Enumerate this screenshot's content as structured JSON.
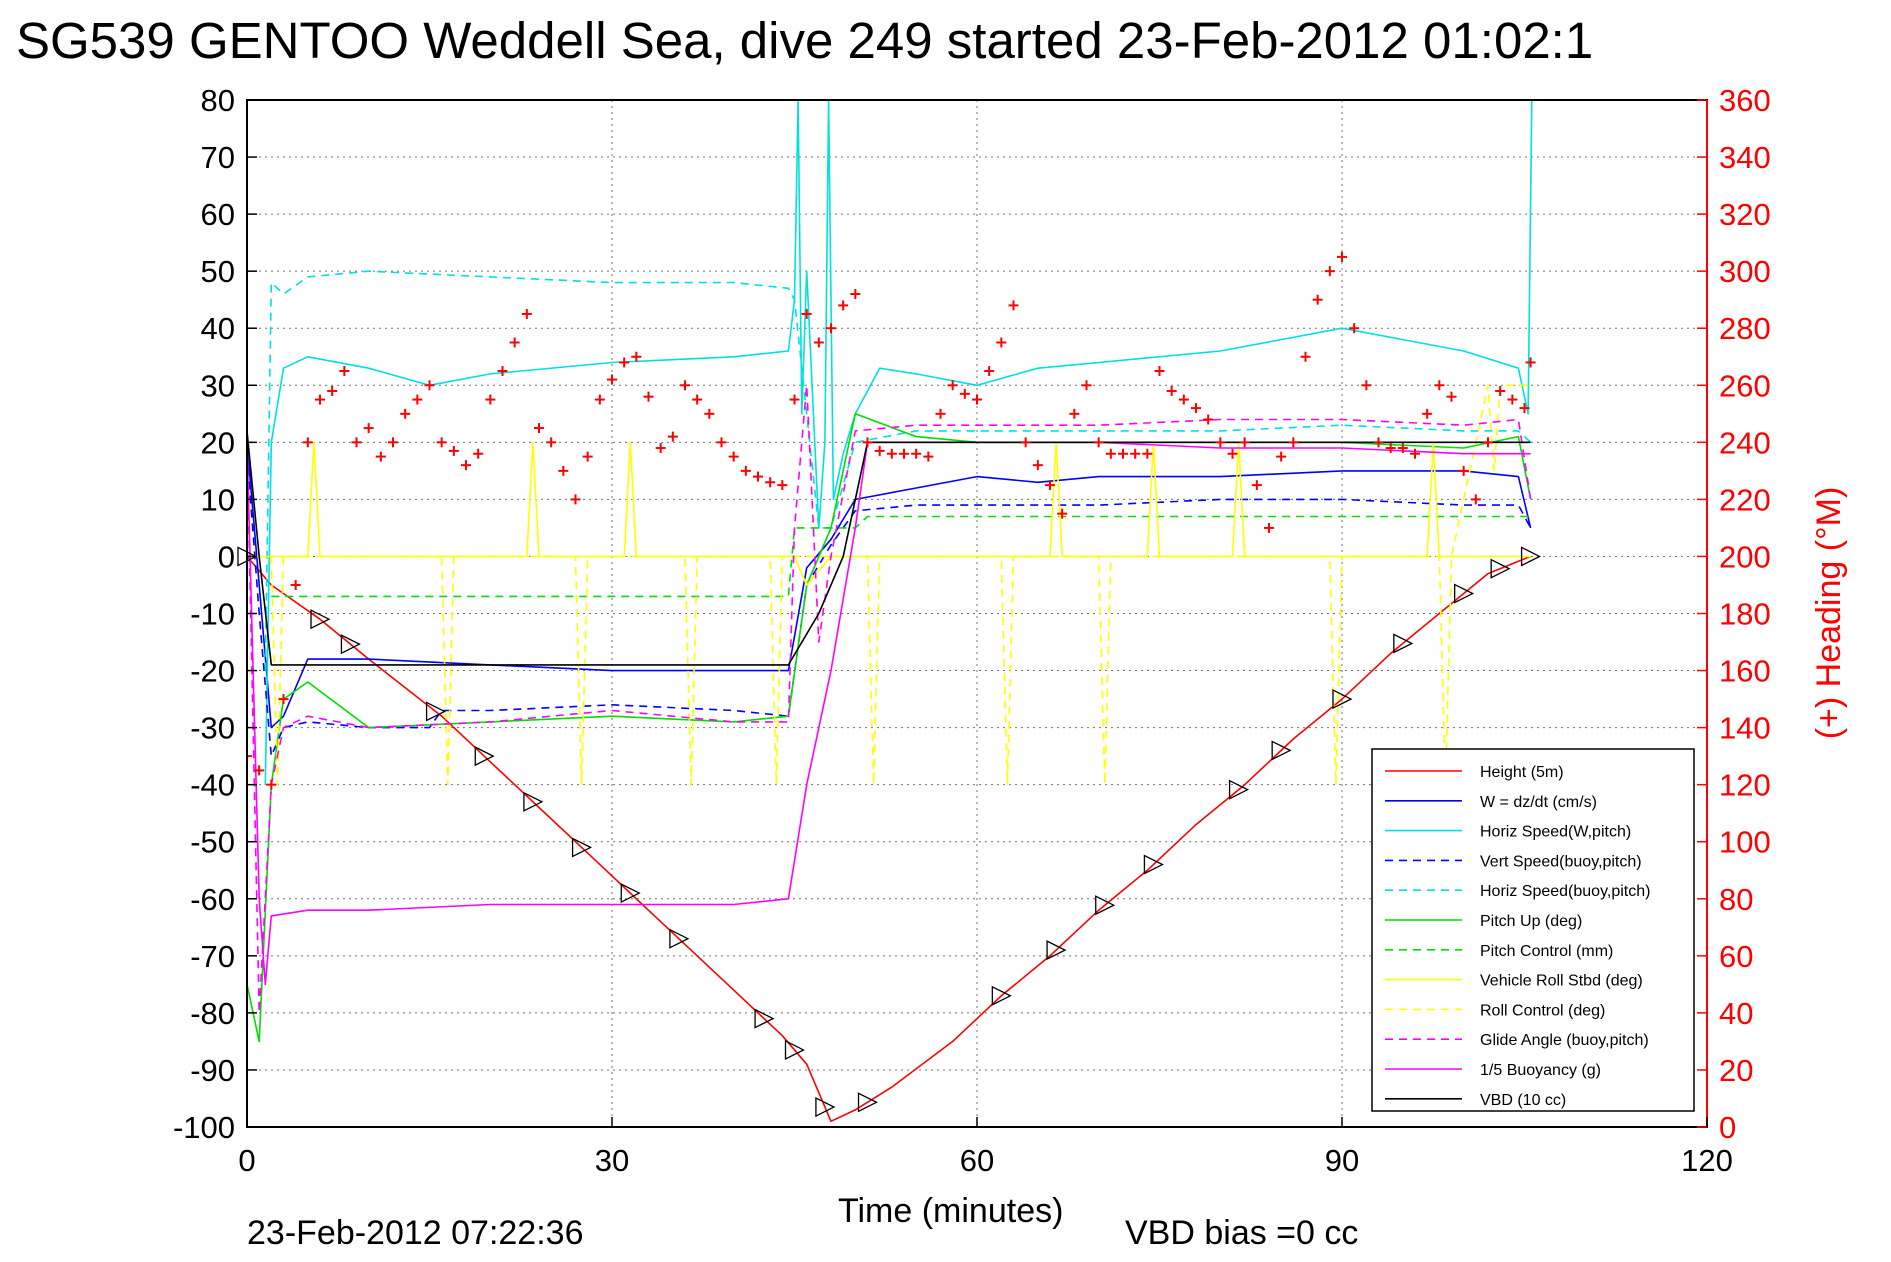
{
  "chart_data": {
    "type": "line",
    "title": "SG539 GENTOO Weddell Sea, dive 249 started 23-Feb-2012 01:02:1",
    "xlabel": "Time (minutes)",
    "ylabel": "",
    "y2label": "(+) Heading (°M)",
    "footer_left": "23-Feb-2012 07:22:36",
    "footer_right": "VBD bias =0 cc",
    "xlim": [
      0,
      120
    ],
    "ylim": [
      -100,
      80
    ],
    "y2lim": [
      0,
      360
    ],
    "x_ticks": [
      0,
      30,
      60,
      90,
      120
    ],
    "y_ticks": [
      80,
      70,
      60,
      50,
      40,
      30,
      20,
      10,
      0,
      -10,
      -20,
      -30,
      -40,
      -50,
      -60,
      -70,
      -80,
      -90,
      -100
    ],
    "y2_ticks": [
      360,
      340,
      320,
      300,
      280,
      260,
      240,
      220,
      200,
      180,
      160,
      140,
      120,
      100,
      80,
      60,
      40,
      20,
      0
    ],
    "grid": true,
    "legend_position": "bottom-right",
    "series": [
      {
        "name": "Height (5m)",
        "color": "#ff0000",
        "dash": "solid",
        "x": [
          0,
          2,
          6,
          10,
          16,
          20,
          24,
          28,
          32,
          36,
          40,
          44,
          46,
          48,
          50,
          53,
          58,
          62,
          66,
          70,
          74,
          78,
          82,
          86,
          90,
          94,
          98,
          102,
          105.5
        ],
        "y": [
          0,
          -5,
          -11,
          -18,
          -28,
          -36,
          -44,
          -52,
          -60,
          -68,
          -76,
          -84,
          -89,
          -99,
          -97,
          -93,
          -85,
          -77,
          -70,
          -62,
          -55,
          -47,
          -40,
          -32,
          -25,
          -17,
          -10,
          -3,
          0
        ]
      },
      {
        "name": "W = dz/dt (cm/s)",
        "color": "#0000ff",
        "dash": "solid",
        "x": [
          0,
          1,
          2,
          3,
          5,
          10,
          20,
          30,
          40,
          44.5,
          46,
          48,
          50,
          55,
          60,
          65,
          70,
          80,
          90,
          100,
          104.5,
          105.5
        ],
        "y": [
          20,
          -5,
          -30,
          -28,
          -18,
          -18,
          -19,
          -20,
          -20,
          -20,
          -2,
          3,
          10,
          12,
          14,
          13,
          14,
          14,
          15,
          15,
          14,
          5
        ]
      },
      {
        "name": "Horiz Speed(W,pitch)",
        "color": "#00e0e0",
        "dash": "solid",
        "x": [
          1.5,
          2,
          3,
          5,
          10,
          15,
          20,
          30,
          40,
          44.5,
          45,
          45.3,
          45.6,
          46,
          47,
          47.5,
          47.8,
          48.2,
          49,
          50,
          52,
          55,
          60,
          65,
          70,
          80,
          85,
          90,
          95,
          100,
          104.5,
          105.3,
          105.6
        ],
        "y": [
          -40,
          20,
          33,
          35,
          33,
          30,
          32,
          34,
          35,
          36,
          45,
          80,
          25,
          50,
          5,
          20,
          80,
          10,
          18,
          25,
          33,
          32,
          30,
          33,
          34,
          36,
          38,
          40,
          38,
          36,
          33,
          25,
          80
        ]
      },
      {
        "name": "Vert Speed(buoy,pitch)",
        "color": "#0000ff",
        "dash": "dash",
        "x": [
          0,
          1,
          2,
          3,
          5,
          10,
          15,
          16,
          20,
          30,
          40,
          44.5,
          46,
          48,
          50,
          55,
          60,
          70,
          80,
          90,
          100,
          104.5,
          105.5
        ],
        "y": [
          18,
          -10,
          -35,
          -30,
          -29,
          -30,
          -30,
          -27,
          -27,
          -26,
          -27,
          -28,
          -5,
          2,
          8,
          9,
          9,
          9,
          10,
          10,
          9,
          9,
          5
        ]
      },
      {
        "name": "Horiz Speed(buoy,pitch)",
        "color": "#00e0e0",
        "dash": "dash",
        "x": [
          1.5,
          2,
          3,
          5,
          10,
          20,
          30,
          40,
          44.5,
          45,
          46,
          47,
          48,
          50,
          55,
          60,
          70,
          80,
          90,
          100,
          104.5,
          105.5
        ],
        "y": [
          -20,
          48,
          46,
          49,
          50,
          49,
          48,
          48,
          47,
          45,
          25,
          5,
          5,
          20,
          22,
          22,
          22,
          22,
          23,
          22,
          22,
          20
        ]
      },
      {
        "name": "Pitch Up (deg)",
        "color": "#00dd00",
        "dash": "solid",
        "x": [
          0,
          1,
          2,
          3,
          5,
          10,
          20,
          30,
          40,
          44.5,
          46,
          48,
          50,
          55,
          60,
          70,
          80,
          90,
          100,
          104.5,
          105.5
        ],
        "y": [
          -75,
          -85,
          -40,
          -25,
          -22,
          -30,
          -29,
          -28,
          -29,
          -28,
          -5,
          5,
          25,
          21,
          20,
          20,
          20,
          20,
          19,
          21,
          10
        ]
      },
      {
        "name": "Pitch Control (mm)",
        "color": "#00dd00",
        "dash": "dash",
        "x": [
          2,
          3,
          10,
          20,
          30,
          40,
          44.5,
          45,
          50,
          51,
          60,
          70,
          80,
          90,
          100,
          105.5
        ],
        "y": [
          -7,
          -7,
          -7,
          -7,
          -7,
          -7,
          -7,
          5,
          5,
          7,
          7,
          7,
          7,
          7,
          7,
          7
        ]
      },
      {
        "name": "Vehicle Roll Stbd (deg)",
        "color": "#ffff00",
        "dash": "solid",
        "x": [
          0,
          2,
          5,
          5.5,
          6,
          8,
          20,
          23,
          23.5,
          24,
          30,
          31,
          31.5,
          32,
          44,
          45,
          46,
          48,
          50,
          60,
          66,
          66.5,
          67,
          74,
          74.5,
          75,
          81,
          81.5,
          82,
          90,
          97,
          97.5,
          98,
          102,
          105.5
        ],
        "y": [
          0,
          0,
          0,
          20,
          0,
          0,
          0,
          0,
          20,
          0,
          0,
          0,
          20,
          0,
          0,
          0,
          -5,
          0,
          0,
          0,
          0,
          20,
          0,
          0,
          20,
          0,
          0,
          20,
          0,
          0,
          0,
          20,
          0,
          0,
          0
        ]
      },
      {
        "name": "Roll Control (deg)",
        "color": "#ffff00",
        "dash": "dash",
        "x": [
          2,
          2.5,
          3,
          6,
          16,
          16.5,
          17,
          20,
          27,
          27.5,
          28,
          36,
          36.5,
          37,
          43,
          43.5,
          44,
          51,
          51.5,
          52,
          62,
          62.5,
          63,
          70,
          70.5,
          71,
          89,
          89.5,
          90,
          98,
          98.5,
          99,
          102,
          102.5,
          103,
          105.5
        ],
        "y": [
          0,
          -40,
          0,
          0,
          0,
          -40,
          0,
          0,
          0,
          -40,
          0,
          0,
          -40,
          0,
          0,
          -40,
          0,
          0,
          -40,
          0,
          0,
          -40,
          0,
          0,
          -40,
          0,
          0,
          -40,
          0,
          0,
          -40,
          0,
          30,
          15,
          30,
          30
        ]
      },
      {
        "name": "Glide Angle (buoy,pitch)",
        "color": "#ff00ff",
        "dash": "dash",
        "x": [
          0,
          1,
          2,
          3,
          5,
          10,
          20,
          30,
          40,
          44.5,
          45,
          46,
          47,
          48,
          50,
          55,
          60,
          70,
          80,
          90,
          100,
          104.5,
          105.5
        ],
        "y": [
          20,
          -80,
          -40,
          -30,
          -28,
          -30,
          -29,
          -27,
          -29,
          -29,
          5,
          30,
          -15,
          0,
          22,
          23,
          23,
          23,
          24,
          24,
          23,
          24,
          10
        ]
      },
      {
        "name": "1/5 Buoyancy (g)",
        "color": "#ff00ff",
        "dash": "solid",
        "x": [
          0,
          1,
          1.5,
          2,
          5,
          10,
          20,
          30,
          40,
          44.5,
          46,
          48,
          50,
          51,
          60,
          70,
          80,
          90,
          100,
          105.5
        ],
        "y": [
          20,
          -60,
          -75,
          -63,
          -62,
          -62,
          -61,
          -61,
          -61,
          -60,
          -40,
          -20,
          5,
          20,
          20,
          20,
          19,
          19,
          18,
          18
        ]
      },
      {
        "name": "VBD (10 cc)",
        "color": "#000000",
        "dash": "solid",
        "x": [
          0,
          1,
          2,
          5,
          20,
          44.5,
          47,
          49,
          51,
          60,
          90,
          105.5
        ],
        "y": [
          22,
          0,
          -19,
          -19,
          -19,
          -19,
          -10,
          0,
          20,
          20,
          20,
          20
        ]
      }
    ],
    "heading_series": {
      "name": "(+) Heading",
      "color": "#ff0000",
      "x": [
        0,
        1,
        2,
        3,
        4,
        5,
        6,
        7,
        8,
        9,
        10,
        11,
        12,
        13,
        14,
        15,
        16,
        17,
        18,
        19,
        20,
        21,
        22,
        23,
        24,
        25,
        26,
        27,
        28,
        29,
        30,
        31,
        32,
        33,
        34,
        35,
        36,
        37,
        38,
        39,
        40,
        41,
        42,
        43,
        44,
        45,
        46,
        47,
        48,
        49,
        50,
        51,
        52,
        53,
        54,
        55,
        56,
        57,
        58,
        59,
        60,
        61,
        62,
        63,
        64,
        65,
        66,
        67,
        68,
        69,
        70,
        71,
        72,
        73,
        74,
        75,
        76,
        77,
        78,
        79,
        80,
        81,
        82,
        83,
        84,
        85,
        86,
        87,
        88,
        89,
        90,
        91,
        92,
        93,
        94,
        95,
        96,
        97,
        98,
        99,
        100,
        101,
        102,
        103,
        104,
        105,
        105.5
      ],
      "y": [
        130,
        125,
        120,
        150,
        190,
        240,
        255,
        258,
        265,
        240,
        245,
        235,
        240,
        250,
        255,
        260,
        240,
        237,
        232,
        236,
        255,
        265,
        275,
        285,
        245,
        240,
        230,
        220,
        235,
        255,
        262,
        268,
        270,
        256,
        238,
        242,
        260,
        255,
        250,
        240,
        235,
        230,
        228,
        226,
        225,
        255,
        285,
        275,
        280,
        288,
        292,
        240,
        237,
        236,
        236,
        236,
        235,
        250,
        260,
        257,
        255,
        265,
        275,
        288,
        240,
        232,
        225,
        215,
        250,
        260,
        240,
        236,
        236,
        236,
        236,
        265,
        258,
        255,
        252,
        248,
        240,
        236,
        240,
        225,
        210,
        235,
        240,
        270,
        290,
        300,
        305,
        280,
        260,
        240,
        238,
        238,
        236,
        250,
        260,
        256,
        230,
        220,
        240,
        258,
        255,
        252,
        268
      ]
    },
    "vbd_markers_x": [
      0,
      6,
      8.5,
      15.5,
      19.5,
      23.5,
      27.5,
      31.5,
      35.5,
      42.5,
      45,
      47.5,
      51,
      62,
      66.5,
      70.5,
      74.5,
      81.5,
      85,
      90,
      95,
      100,
      103,
      105.5
    ]
  }
}
